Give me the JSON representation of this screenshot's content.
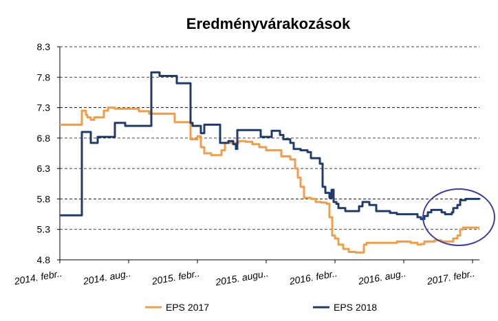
{
  "chart_data": {
    "type": "line",
    "title": "Eredményvárakozások",
    "xlabel": "",
    "ylabel": "",
    "ylim": [
      4.8,
      8.3
    ],
    "yticks": [
      "8.3",
      "7.8",
      "7.3",
      "6.8",
      "6.3",
      "5.8",
      "5.3",
      "4.8"
    ],
    "xticks": [
      "2014. febr..",
      "2014. aug..",
      "2015. febr..",
      "2015. augu..",
      "2016. febr..",
      "2016. aug..",
      "2017. febr.."
    ],
    "grid": true,
    "legend_position": "bottom",
    "colors": {
      "EPS 2017": "#f39c45",
      "EPS 2018": "#1f3b6e",
      "highlight": "#3b3bb0"
    },
    "series": [
      {
        "name": "EPS 2017",
        "points": [
          [
            0.0,
            7.02
          ],
          [
            0.3,
            7.02
          ],
          [
            0.32,
            7.25
          ],
          [
            0.38,
            7.18
          ],
          [
            0.4,
            7.14
          ],
          [
            0.45,
            7.1
          ],
          [
            0.5,
            7.14
          ],
          [
            0.62,
            7.14
          ],
          [
            0.64,
            7.25
          ],
          [
            0.7,
            7.3
          ],
          [
            0.8,
            7.28
          ],
          [
            1.15,
            7.24
          ],
          [
            1.3,
            7.2
          ],
          [
            1.62,
            7.2
          ],
          [
            1.67,
            7.06
          ],
          [
            1.85,
            7.06
          ],
          [
            1.9,
            6.78
          ],
          [
            1.95,
            6.78
          ],
          [
            2.0,
            6.83
          ],
          [
            2.05,
            6.65
          ],
          [
            2.1,
            6.55
          ],
          [
            2.2,
            6.52
          ],
          [
            2.3,
            6.52
          ],
          [
            2.35,
            6.6
          ],
          [
            2.4,
            6.72
          ],
          [
            2.5,
            6.72
          ],
          [
            2.6,
            6.75
          ],
          [
            2.7,
            6.74
          ],
          [
            2.8,
            6.7
          ],
          [
            2.9,
            6.65
          ],
          [
            3.0,
            6.6
          ],
          [
            3.18,
            6.6
          ],
          [
            3.22,
            6.5
          ],
          [
            3.3,
            6.5
          ],
          [
            3.35,
            6.45
          ],
          [
            3.42,
            6.3
          ],
          [
            3.46,
            6.15
          ],
          [
            3.5,
            6.0
          ],
          [
            3.55,
            5.82
          ],
          [
            3.65,
            5.8
          ],
          [
            3.72,
            5.75
          ],
          [
            3.8,
            5.74
          ],
          [
            3.88,
            5.72
          ],
          [
            3.92,
            5.5
          ],
          [
            3.96,
            5.2
          ],
          [
            4.0,
            5.15
          ],
          [
            4.05,
            5.05
          ],
          [
            4.12,
            4.98
          ],
          [
            4.2,
            4.93
          ],
          [
            4.3,
            4.92
          ],
          [
            4.4,
            4.92
          ],
          [
            4.42,
            5.05
          ],
          [
            4.46,
            5.08
          ],
          [
            4.55,
            5.08
          ],
          [
            4.7,
            5.08
          ],
          [
            4.9,
            5.1
          ],
          [
            5.1,
            5.08
          ],
          [
            5.2,
            5.05
          ],
          [
            5.25,
            5.06
          ],
          [
            5.3,
            5.1
          ],
          [
            5.45,
            5.12
          ],
          [
            5.55,
            5.1
          ],
          [
            5.65,
            5.1
          ],
          [
            5.72,
            5.15
          ],
          [
            5.78,
            5.2
          ],
          [
            5.82,
            5.3
          ],
          [
            5.86,
            5.33
          ],
          [
            6.0,
            5.33
          ],
          [
            6.1,
            5.33
          ]
        ]
      },
      {
        "name": "EPS 2018",
        "points": [
          [
            0.0,
            5.53
          ],
          [
            0.3,
            5.53
          ],
          [
            0.32,
            6.9
          ],
          [
            0.42,
            6.9
          ],
          [
            0.45,
            6.72
          ],
          [
            0.5,
            6.72
          ],
          [
            0.55,
            6.82
          ],
          [
            0.7,
            6.82
          ],
          [
            0.8,
            7.05
          ],
          [
            0.85,
            7.05
          ],
          [
            0.95,
            7.0
          ],
          [
            1.1,
            7.0
          ],
          [
            1.3,
            7.0
          ],
          [
            1.33,
            7.88
          ],
          [
            1.4,
            7.88
          ],
          [
            1.45,
            7.82
          ],
          [
            1.65,
            7.82
          ],
          [
            1.7,
            7.7
          ],
          [
            1.88,
            7.7
          ],
          [
            1.9,
            7.05
          ],
          [
            1.93,
            7.0
          ],
          [
            2.05,
            6.88
          ],
          [
            2.1,
            7.02
          ],
          [
            2.3,
            7.02
          ],
          [
            2.33,
            6.72
          ],
          [
            2.45,
            6.75
          ],
          [
            2.52,
            6.7
          ],
          [
            2.56,
            6.62
          ],
          [
            2.58,
            6.93
          ],
          [
            2.7,
            6.93
          ],
          [
            2.9,
            6.93
          ],
          [
            2.92,
            6.82
          ],
          [
            3.05,
            6.82
          ],
          [
            3.08,
            6.92
          ],
          [
            3.15,
            6.92
          ],
          [
            3.2,
            6.85
          ],
          [
            3.25,
            6.78
          ],
          [
            3.35,
            6.72
          ],
          [
            3.4,
            6.62
          ],
          [
            3.5,
            6.6
          ],
          [
            3.6,
            6.57
          ],
          [
            3.65,
            6.47
          ],
          [
            3.7,
            6.47
          ],
          [
            3.78,
            6.38
          ],
          [
            3.82,
            6.0
          ],
          [
            3.86,
            5.9
          ],
          [
            3.92,
            5.82
          ],
          [
            3.95,
            5.95
          ],
          [
            3.98,
            5.75
          ],
          [
            4.02,
            5.72
          ],
          [
            4.05,
            5.65
          ],
          [
            4.15,
            5.6
          ],
          [
            4.25,
            5.6
          ],
          [
            4.35,
            5.68
          ],
          [
            4.4,
            5.75
          ],
          [
            4.5,
            5.7
          ],
          [
            4.6,
            5.6
          ],
          [
            4.7,
            5.6
          ],
          [
            4.8,
            5.57
          ],
          [
            4.9,
            5.55
          ],
          [
            5.0,
            5.55
          ],
          [
            5.1,
            5.55
          ],
          [
            5.2,
            5.5
          ],
          [
            5.25,
            5.47
          ],
          [
            5.3,
            5.52
          ],
          [
            5.35,
            5.58
          ],
          [
            5.4,
            5.62
          ],
          [
            5.48,
            5.62
          ],
          [
            5.55,
            5.58
          ],
          [
            5.6,
            5.55
          ],
          [
            5.65,
            5.55
          ],
          [
            5.7,
            5.58
          ],
          [
            5.72,
            5.65
          ],
          [
            5.78,
            5.7
          ],
          [
            5.82,
            5.78
          ],
          [
            5.9,
            5.8
          ],
          [
            6.0,
            5.8
          ],
          [
            6.1,
            5.79
          ]
        ]
      }
    ]
  }
}
